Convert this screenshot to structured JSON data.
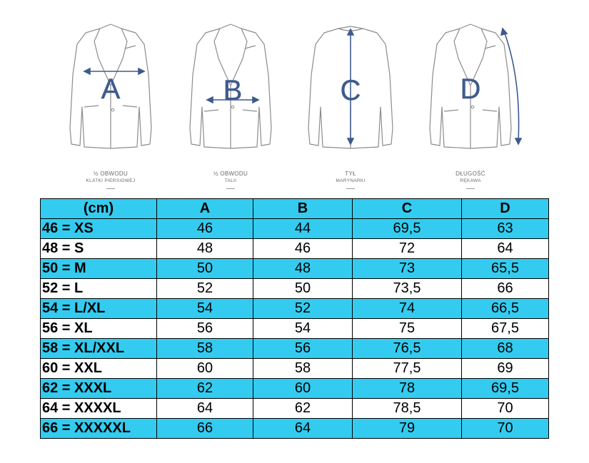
{
  "figures": [
    {
      "letter": "A",
      "caption_line1": "½ OBWODU",
      "caption_line2": "KLATKI PIERSIOWEJ"
    },
    {
      "letter": "B",
      "caption_line1": "½ OBWODU",
      "caption_line2": "TALII"
    },
    {
      "letter": "C",
      "caption_line1": "TYŁ",
      "caption_line2": "MARYNARKI"
    },
    {
      "letter": "D",
      "caption_line1": "DŁUGOŚĆ",
      "caption_line2": "RĘKAWA"
    }
  ],
  "colors": {
    "accent": "#33ccf0",
    "measure": "#3f5a8c",
    "outline": "#8c8c8c"
  },
  "table": {
    "headers": [
      "(cm)",
      "A",
      "B",
      "C",
      "D"
    ],
    "rows": [
      [
        "46 = XS",
        "46",
        "44",
        "69,5",
        "63"
      ],
      [
        "48 = S",
        "48",
        "46",
        "72",
        "64"
      ],
      [
        "50 = M",
        "50",
        "48",
        "73",
        "65,5"
      ],
      [
        "52 = L",
        "52",
        "50",
        "73,5",
        "66"
      ],
      [
        "54 = L/XL",
        "54",
        "52",
        "74",
        "66,5"
      ],
      [
        "56 = XL",
        "56",
        "54",
        "75",
        "67,5"
      ],
      [
        "58 = XL/XXL",
        "58",
        "56",
        "76,5",
        "68"
      ],
      [
        "60 = XXL",
        "60",
        "58",
        "77,5",
        "69"
      ],
      [
        "62 = XXXL",
        "62",
        "60",
        "78",
        "69,5"
      ],
      [
        "64 = XXXXL",
        "64",
        "62",
        "78,5",
        "70"
      ],
      [
        "66 = XXXXXL",
        "66",
        "64",
        "79",
        "70"
      ]
    ]
  }
}
